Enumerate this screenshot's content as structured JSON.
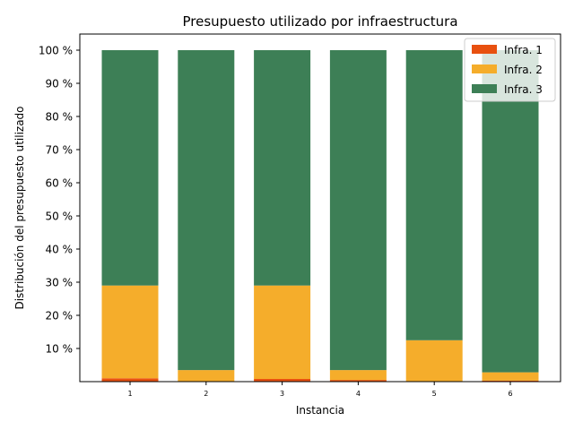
{
  "chart_data": {
    "type": "bar",
    "stacked": true,
    "title": "Presupuesto utilizado por infraestructura",
    "xlabel": "Instancia",
    "ylabel": "Distribución del presupuesto utilizado",
    "categories": [
      "1",
      "2",
      "3",
      "4",
      "5",
      "6"
    ],
    "ylim": [
      0,
      100
    ],
    "yticks": [
      10,
      20,
      30,
      40,
      50,
      60,
      70,
      80,
      90,
      100
    ],
    "ytick_labels": [
      "10 %",
      "20 %",
      "30 %",
      "40 %",
      "50 %",
      "60 %",
      "70 %",
      "80 %",
      "90 %",
      "100 %"
    ],
    "grid": false,
    "legend_position": "top-right",
    "series": [
      {
        "name": "Infra. 1",
        "color": "#e8500f",
        "values": [
          1.0,
          0.0,
          0.8,
          0.5,
          0.0,
          0.3
        ]
      },
      {
        "name": "Infra. 2",
        "color": "#f5ad2b",
        "values": [
          28.0,
          3.5,
          28.2,
          3.0,
          12.5,
          2.5
        ]
      },
      {
        "name": "Infra. 3",
        "color": "#3d7f56",
        "values": [
          71.0,
          96.5,
          71.0,
          96.5,
          87.5,
          97.2
        ]
      }
    ]
  }
}
